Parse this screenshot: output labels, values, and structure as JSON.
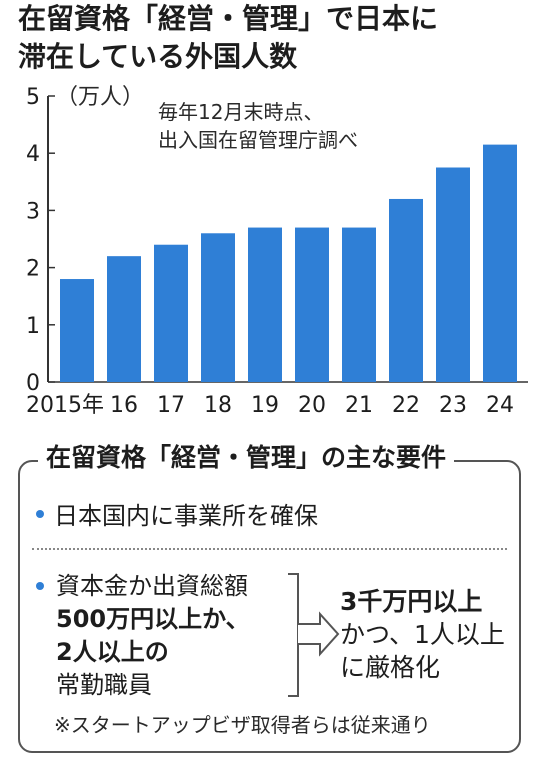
{
  "title": {
    "line1": "在留資格「経営・管理」で日本に",
    "line2": "滞在している外国人数"
  },
  "note": {
    "line1": "毎年12月末時点、",
    "line2": "出入国在留管理庁調べ"
  },
  "unit": "（万人）",
  "chart_data": {
    "type": "bar",
    "categories": [
      "2015年",
      "16",
      "17",
      "18",
      "19",
      "20",
      "21",
      "22",
      "23",
      "24"
    ],
    "values": [
      1.8,
      2.2,
      2.4,
      2.6,
      2.7,
      2.7,
      2.7,
      3.2,
      3.75,
      4.15
    ],
    "ylim": [
      0,
      5
    ],
    "yticks": [
      "0",
      "1",
      "2",
      "3",
      "4",
      "5"
    ],
    "bar_color": "#2f7fd6",
    "grid": false,
    "title": "在留資格「経営・管理」で日本に滞在している外国人数",
    "ylabel": "（万人）"
  },
  "requirements": {
    "title": "在留資格「経営・管理」の主な要件",
    "item1": "日本国内に事業所を確保",
    "item2_line1": "資本金か出資総額",
    "item2_line2": "500万円以上か、",
    "item2_line3": "2人以上の",
    "item2_line4": "常勤職員",
    "arrow_icon": "right-arrow-icon",
    "result_line1": "3千万円以上",
    "result_line2": "かつ、1人以上",
    "result_line3": "に厳格化",
    "footnote": "※スタートアップビザ取得者らは従来通り",
    "accent_color": "#2f7fd6"
  }
}
